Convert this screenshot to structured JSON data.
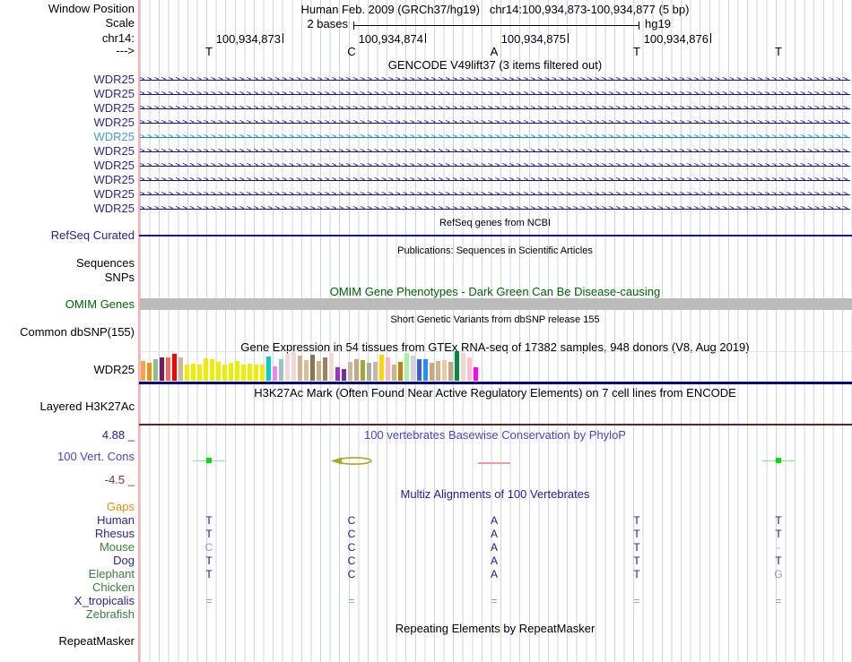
{
  "header": {
    "window_position_label": "Window Position",
    "title": "Human Feb. 2009 (GRCh37/hg19)",
    "position": "chr14:100,934,873-100,934,877 (5 bp)",
    "scale_label": "Scale",
    "scale_value": "2 bases",
    "assembly": "hg19",
    "chrom_label": "chr14:",
    "strand_label": "--->",
    "coordinates": [
      "100,934,873",
      "100,934,874",
      "100,934,875",
      "100,934,876"
    ],
    "bases": [
      "T",
      "C",
      "A",
      "T",
      "T"
    ]
  },
  "gencode": {
    "header": "GENCODE V49lift37 (3 items filtered out)",
    "genes": [
      {
        "label": "WDR25",
        "highlight": false
      },
      {
        "label": "WDR25",
        "highlight": false
      },
      {
        "label": "WDR25",
        "highlight": false
      },
      {
        "label": "WDR25",
        "highlight": false
      },
      {
        "label": "WDR25",
        "highlight": true
      },
      {
        "label": "WDR25",
        "highlight": false
      },
      {
        "label": "WDR25",
        "highlight": false
      },
      {
        "label": "WDR25",
        "highlight": false
      },
      {
        "label": "WDR25",
        "highlight": false
      },
      {
        "label": "WDR25",
        "highlight": false
      }
    ]
  },
  "refseq": {
    "header": "RefSeq genes from NCBI",
    "label": "RefSeq Curated"
  },
  "publications": {
    "header": "Publications: Sequences in Scientific Articles",
    "labels": [
      "Sequences",
      "SNPs"
    ]
  },
  "omim": {
    "header": "OMIM Gene Phenotypes - Dark Green Can Be Disease-causing",
    "label": "OMIM Genes"
  },
  "dbsnp": {
    "header": "Short Genetic Variants from dbSNP release 155",
    "label": "Common dbSNP(155)"
  },
  "gtex": {
    "header": "Gene Expression in 54 tissues from GTEx RNA-seq of 17382 samples, 948 donors (V8, Aug 2019)",
    "label": "WDR25"
  },
  "chart_data": {
    "type": "bar",
    "title": "Gene Expression in 54 tissues from GTEx RNA-seq of 17382 samples, 948 donors (V8, Aug 2019)",
    "gene": "WDR25",
    "note": "54 tissue expression bars, heights in screen px (no numeric axis shown)",
    "values": [
      22,
      20,
      24,
      26,
      26,
      30,
      26,
      18,
      19,
      18,
      25,
      24,
      21,
      18,
      20,
      22,
      18,
      19,
      18,
      18,
      27,
      16,
      24,
      30,
      32,
      28,
      23,
      29,
      22,
      26,
      31,
      15,
      13,
      21,
      24,
      23,
      20,
      21,
      29,
      26,
      18,
      21,
      31,
      28,
      24,
      24,
      20,
      22,
      23,
      21,
      33,
      31,
      26,
      15
    ],
    "colors": [
      "#FFA04C",
      "#E8960F",
      "#8FBC8F",
      "#7A1A5E",
      "#F26C5A",
      "#FF0000",
      "#CDB79E",
      "#EDED00",
      "#EDED00",
      "#EDED00",
      "#EDED00",
      "#EDED00",
      "#EDED00",
      "#EDED00",
      "#EDED00",
      "#EDED00",
      "#EDED00",
      "#EDED00",
      "#EDED00",
      "#EDED00",
      "#00CDCD",
      "#EE82EE",
      "#9AC0CD",
      "#F2D9D9",
      "#EFD7D7",
      "#D2B48C",
      "#D8BE96",
      "#8B7355",
      "#C8B08E",
      "#A08060",
      "#EFDBD3",
      "#9932CC",
      "#6A33A0",
      "#CDB79E",
      "#C4A882",
      "#A0A832",
      "#AAAAAA",
      "#C8B89E",
      "#FFD700",
      "#FFB6C1",
      "#D2B48C",
      "#B8860B",
      "#AAF0AA",
      "#D3D3D3",
      "#3A5FCD",
      "#1E90FF",
      "#C8A878",
      "#D2B48C",
      "#F0C8A0",
      "#C0A880",
      "#008B45",
      "#EFD5CD",
      "#FFC0CB",
      "#FF00FF"
    ]
  },
  "h3k27ac": {
    "header": "H3K27Ac Mark (Often Found Near Active Regulatory Elements) on 7 cell lines from ENCODE",
    "label": "Layered H3K27Ac"
  },
  "conservation": {
    "header": "100 vertebrates Basewise Conservation by PhyloP",
    "label": "100 Vert. Cons",
    "max_label": "4.88 _",
    "min_label": "-4.5 _",
    "marks": [
      {
        "base": 0,
        "kind": "gain"
      },
      {
        "base": 1,
        "kind": "loop"
      },
      {
        "base": 2,
        "kind": "loss"
      },
      {
        "base": 4,
        "kind": "gain"
      }
    ],
    "mark_colors": {
      "gain_square": "#00dc00",
      "gain_line": "#8fe08f",
      "loss_line": "#f09a9a",
      "loop": "#a9a921"
    }
  },
  "multiz": {
    "header": "Multiz Alignments of 100 Vertebrates",
    "gaps_label": "Gaps",
    "species": [
      {
        "name": "Human",
        "c": "navy",
        "cells": [
          {
            "t": "T"
          },
          {
            "t": "C"
          },
          {
            "t": "A"
          },
          {
            "t": "T"
          },
          {
            "t": "T"
          }
        ]
      },
      {
        "name": "Rhesus",
        "c": "navy",
        "cells": [
          {
            "t": "T"
          },
          {
            "t": "C"
          },
          {
            "t": "A"
          },
          {
            "t": "T"
          },
          {
            "t": "T"
          }
        ]
      },
      {
        "name": "Mouse",
        "c": "green",
        "cells": [
          {
            "t": "C",
            "dim": true
          },
          {
            "t": "C"
          },
          {
            "t": "A"
          },
          {
            "t": "T"
          },
          {
            "t": "-",
            "dim": true
          }
        ]
      },
      {
        "name": "Dog",
        "c": "navy",
        "cells": [
          {
            "t": "T"
          },
          {
            "t": "C"
          },
          {
            "t": "A"
          },
          {
            "t": "T"
          },
          {
            "t": "T"
          }
        ]
      },
      {
        "name": "Elephant",
        "c": "green",
        "cells": [
          {
            "t": "T"
          },
          {
            "t": "C"
          },
          {
            "t": "A"
          },
          {
            "t": "T"
          },
          {
            "t": "G",
            "dim": true
          }
        ]
      },
      {
        "name": "Chicken",
        "c": "green",
        "cells": [
          null,
          null,
          null,
          null,
          null
        ]
      },
      {
        "name": "X_tropicalis",
        "c": "navy",
        "cells": [
          {
            "t": "=",
            "dim": true
          },
          {
            "t": "=",
            "dim": true
          },
          {
            "t": "=",
            "dim": true
          },
          {
            "t": "=",
            "dim": true
          },
          {
            "t": "=",
            "dim": true
          }
        ]
      },
      {
        "name": "Zebrafish",
        "c": "green",
        "cells": [
          null,
          null,
          null,
          null,
          null
        ]
      }
    ]
  },
  "repeatmasker": {
    "header": "Repeating Elements by RepeatMasker",
    "label": "RepeatMasker"
  },
  "colors": {
    "guideline": "#ccd3f1",
    "side_divider": "#f9b0b0",
    "gene_normal": "#14147a",
    "gene_highlight": "#1b87b0",
    "refseq_line": "#151597",
    "omim_bar": "#bbbbbb",
    "gtex_baseline": "#000080",
    "h3k27ac_line": "#6e2020",
    "phylop_header": "#4646c8",
    "omim_green": "#006400"
  }
}
